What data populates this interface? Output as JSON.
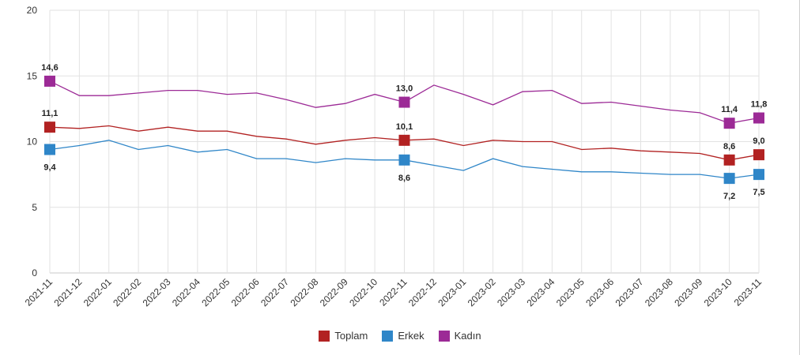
{
  "chart_data": {
    "type": "line",
    "title": "",
    "xlabel": "",
    "ylabel": "",
    "ylim": [
      0,
      20
    ],
    "yticks": [
      0,
      5,
      10,
      15,
      20
    ],
    "grid": true,
    "legend_position": "bottom-center",
    "categories": [
      "2021-11",
      "2021-12",
      "2022-01",
      "2022-02",
      "2022-03",
      "2022-04",
      "2022-05",
      "2022-06",
      "2022-07",
      "2022-08",
      "2022-09",
      "2022-10",
      "2022-11",
      "2022-12",
      "2023-01",
      "2023-02",
      "2023-03",
      "2023-04",
      "2023-05",
      "2023-06",
      "2023-07",
      "2023-08",
      "2023-09",
      "2023-10",
      "2023-11"
    ],
    "series": [
      {
        "name": "Toplam",
        "color": "#b22222",
        "values": [
          11.1,
          11.0,
          11.2,
          10.8,
          11.1,
          10.8,
          10.8,
          10.4,
          10.2,
          9.8,
          10.1,
          10.3,
          10.1,
          10.2,
          9.7,
          10.1,
          10.0,
          10.0,
          9.4,
          9.5,
          9.3,
          9.2,
          9.1,
          8.6,
          9.0
        ],
        "labels": [
          {
            "index": 0,
            "text": "11,1",
            "pos": "above"
          },
          {
            "index": 12,
            "text": "10,1",
            "pos": "above"
          },
          {
            "index": 23,
            "text": "8,6",
            "pos": "above"
          },
          {
            "index": 24,
            "text": "9,0",
            "pos": "above"
          }
        ]
      },
      {
        "name": "Erkek",
        "color": "#2f86c8",
        "values": [
          9.4,
          9.7,
          10.1,
          9.4,
          9.7,
          9.2,
          9.4,
          8.7,
          8.7,
          8.4,
          8.7,
          8.6,
          8.6,
          8.2,
          7.8,
          8.7,
          8.1,
          7.9,
          7.7,
          7.7,
          7.6,
          7.5,
          7.5,
          7.2,
          7.5
        ],
        "labels": [
          {
            "index": 0,
            "text": "9,4",
            "pos": "below"
          },
          {
            "index": 12,
            "text": "8,6",
            "pos": "below"
          },
          {
            "index": 23,
            "text": "7,2",
            "pos": "below"
          },
          {
            "index": 24,
            "text": "7,5",
            "pos": "below"
          }
        ]
      },
      {
        "name": "Kadın",
        "color": "#9c2a96",
        "values": [
          14.6,
          13.5,
          13.5,
          13.7,
          13.9,
          13.9,
          13.6,
          13.7,
          13.2,
          12.6,
          12.9,
          13.6,
          13.0,
          14.3,
          13.6,
          12.8,
          13.8,
          13.9,
          12.9,
          13.0,
          12.7,
          12.4,
          12.2,
          11.4,
          11.8
        ],
        "labels": [
          {
            "index": 0,
            "text": "14,6",
            "pos": "above"
          },
          {
            "index": 12,
            "text": "13,0",
            "pos": "above"
          },
          {
            "index": 23,
            "text": "11,4",
            "pos": "above"
          },
          {
            "index": 24,
            "text": "11,8",
            "pos": "above"
          }
        ]
      }
    ],
    "marker_indices": [
      0,
      12,
      23,
      24
    ]
  }
}
